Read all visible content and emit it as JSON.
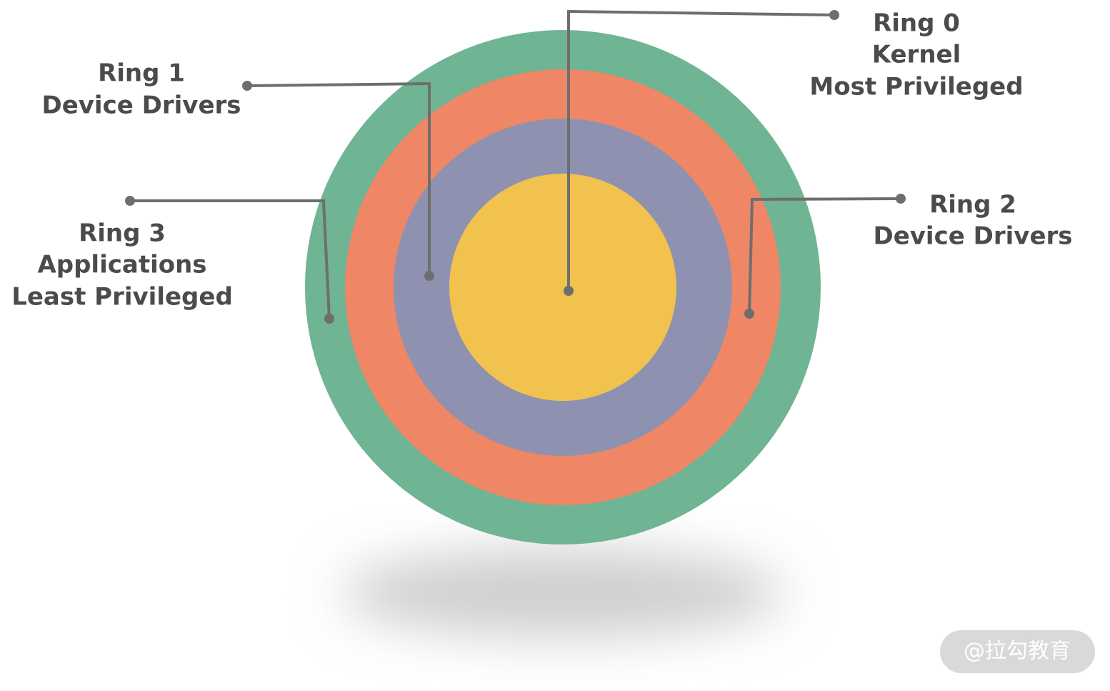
{
  "rings": [
    {
      "lines": [
        "Ring 0",
        "Kernel",
        "Most Privileged"
      ]
    },
    {
      "lines": [
        "Ring 1",
        "Device Drivers"
      ]
    },
    {
      "lines": [
        "Ring 2",
        "Device Drivers"
      ]
    },
    {
      "lines": [
        "Ring 3",
        "Applications",
        "Least Privileged"
      ]
    }
  ],
  "watermark": "@拉勾教育"
}
